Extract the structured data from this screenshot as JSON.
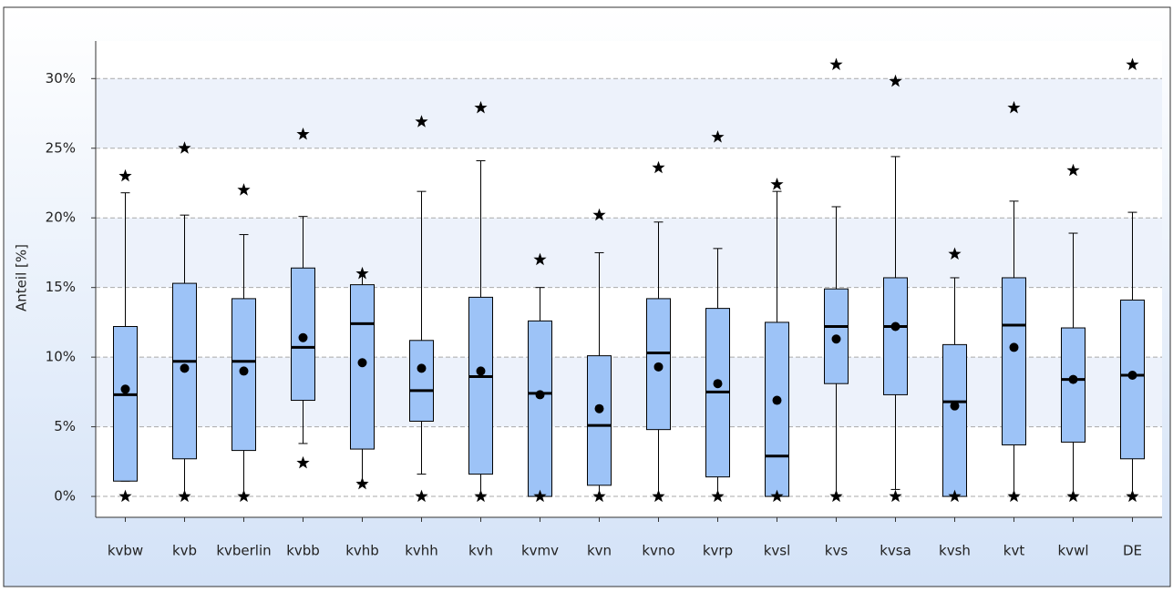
{
  "chart_data": {
    "type": "box",
    "y_label": "Anteil [%]",
    "categories": [
      "kvbw",
      "kvb",
      "kvberlin",
      "kvbb",
      "kvhb",
      "kvhh",
      "kvh",
      "kvmv",
      "kvn",
      "kvno",
      "kvrp",
      "kvsl",
      "kvs",
      "kvsa",
      "kvsh",
      "kvt",
      "kvwl",
      "DE"
    ],
    "color": "#9dc3f7",
    "boxes": [
      {
        "whisker_low": 1.1,
        "q1": 1.1,
        "median": 7.3,
        "q3": 12.2,
        "whisker_high": 21.8,
        "mean": 7.7,
        "outliers": [
          0,
          23.0
        ]
      },
      {
        "whisker_low": 0,
        "q1": 2.7,
        "median": 9.7,
        "q3": 15.3,
        "whisker_high": 20.2,
        "mean": 9.2,
        "outliers": [
          0,
          25.0
        ]
      },
      {
        "whisker_low": 0,
        "q1": 3.3,
        "median": 9.7,
        "q3": 14.2,
        "whisker_high": 18.8,
        "mean": 9.0,
        "outliers": [
          0,
          22.0
        ]
      },
      {
        "whisker_low": 3.8,
        "q1": 6.9,
        "median": 10.7,
        "q3": 16.4,
        "whisker_high": 20.1,
        "mean": 11.4,
        "outliers": [
          2.4,
          26.0
        ]
      },
      {
        "whisker_low": 0.9,
        "q1": 3.4,
        "median": 12.4,
        "q3": 15.2,
        "whisker_high": 16.1,
        "mean": 9.6,
        "outliers": [
          0.9,
          16.0
        ]
      },
      {
        "whisker_low": 1.6,
        "q1": 5.4,
        "median": 7.6,
        "q3": 11.2,
        "whisker_high": 21.9,
        "mean": 9.2,
        "outliers": [
          0,
          26.9
        ]
      },
      {
        "whisker_low": 0,
        "q1": 1.6,
        "median": 8.6,
        "q3": 14.3,
        "whisker_high": 24.1,
        "mean": 9.0,
        "outliers": [
          0,
          27.9
        ]
      },
      {
        "whisker_low": 0,
        "q1": 0,
        "median": 7.4,
        "q3": 12.6,
        "whisker_high": 15.0,
        "mean": 7.3,
        "outliers": [
          0,
          17.0
        ]
      },
      {
        "whisker_low": 0,
        "q1": 0.8,
        "median": 5.1,
        "q3": 10.1,
        "whisker_high": 17.5,
        "mean": 6.3,
        "outliers": [
          0,
          20.2
        ]
      },
      {
        "whisker_low": 0,
        "q1": 4.8,
        "median": 10.3,
        "q3": 14.2,
        "whisker_high": 19.7,
        "mean": 9.3,
        "outliers": [
          0,
          23.6
        ]
      },
      {
        "whisker_low": 0,
        "q1": 1.4,
        "median": 7.5,
        "q3": 13.5,
        "whisker_high": 17.8,
        "mean": 8.1,
        "outliers": [
          0,
          25.8
        ]
      },
      {
        "whisker_low": 0,
        "q1": 0,
        "median": 2.9,
        "q3": 12.5,
        "whisker_high": 21.9,
        "mean": 6.9,
        "outliers": [
          0,
          22.4
        ]
      },
      {
        "whisker_low": 0,
        "q1": 8.1,
        "median": 12.2,
        "q3": 14.9,
        "whisker_high": 20.8,
        "mean": 11.3,
        "outliers": [
          0,
          31.0
        ]
      },
      {
        "whisker_low": 0.5,
        "q1": 7.3,
        "median": 12.2,
        "q3": 15.7,
        "whisker_high": 24.4,
        "mean": 12.2,
        "outliers": [
          0,
          29.8
        ]
      },
      {
        "whisker_low": 0,
        "q1": 0,
        "median": 6.8,
        "q3": 10.9,
        "whisker_high": 15.7,
        "mean": 6.5,
        "outliers": [
          0,
          17.4
        ]
      },
      {
        "whisker_low": 0,
        "q1": 3.7,
        "median": 12.3,
        "q3": 15.7,
        "whisker_high": 21.2,
        "mean": 10.7,
        "outliers": [
          0,
          27.9
        ]
      },
      {
        "whisker_low": 0,
        "q1": 3.9,
        "median": 8.4,
        "q3": 12.1,
        "whisker_high": 18.9,
        "mean": 8.4,
        "outliers": [
          0,
          23.4
        ]
      },
      {
        "whisker_low": 0,
        "q1": 2.7,
        "median": 8.7,
        "q3": 14.1,
        "whisker_high": 20.4,
        "mean": 8.7,
        "outliers": [
          0,
          31.0
        ]
      }
    ],
    "ylim": [
      -1.5,
      32.7
    ],
    "yticks": [
      {
        "value": 0,
        "label": "0%"
      },
      {
        "value": 5,
        "label": "5%"
      },
      {
        "value": 10,
        "label": "10%"
      },
      {
        "value": 15,
        "label": "15%"
      },
      {
        "value": 20,
        "label": "20%"
      },
      {
        "value": 25,
        "label": "25%"
      },
      {
        "value": 30,
        "label": "30%"
      }
    ],
    "grid": true
  }
}
